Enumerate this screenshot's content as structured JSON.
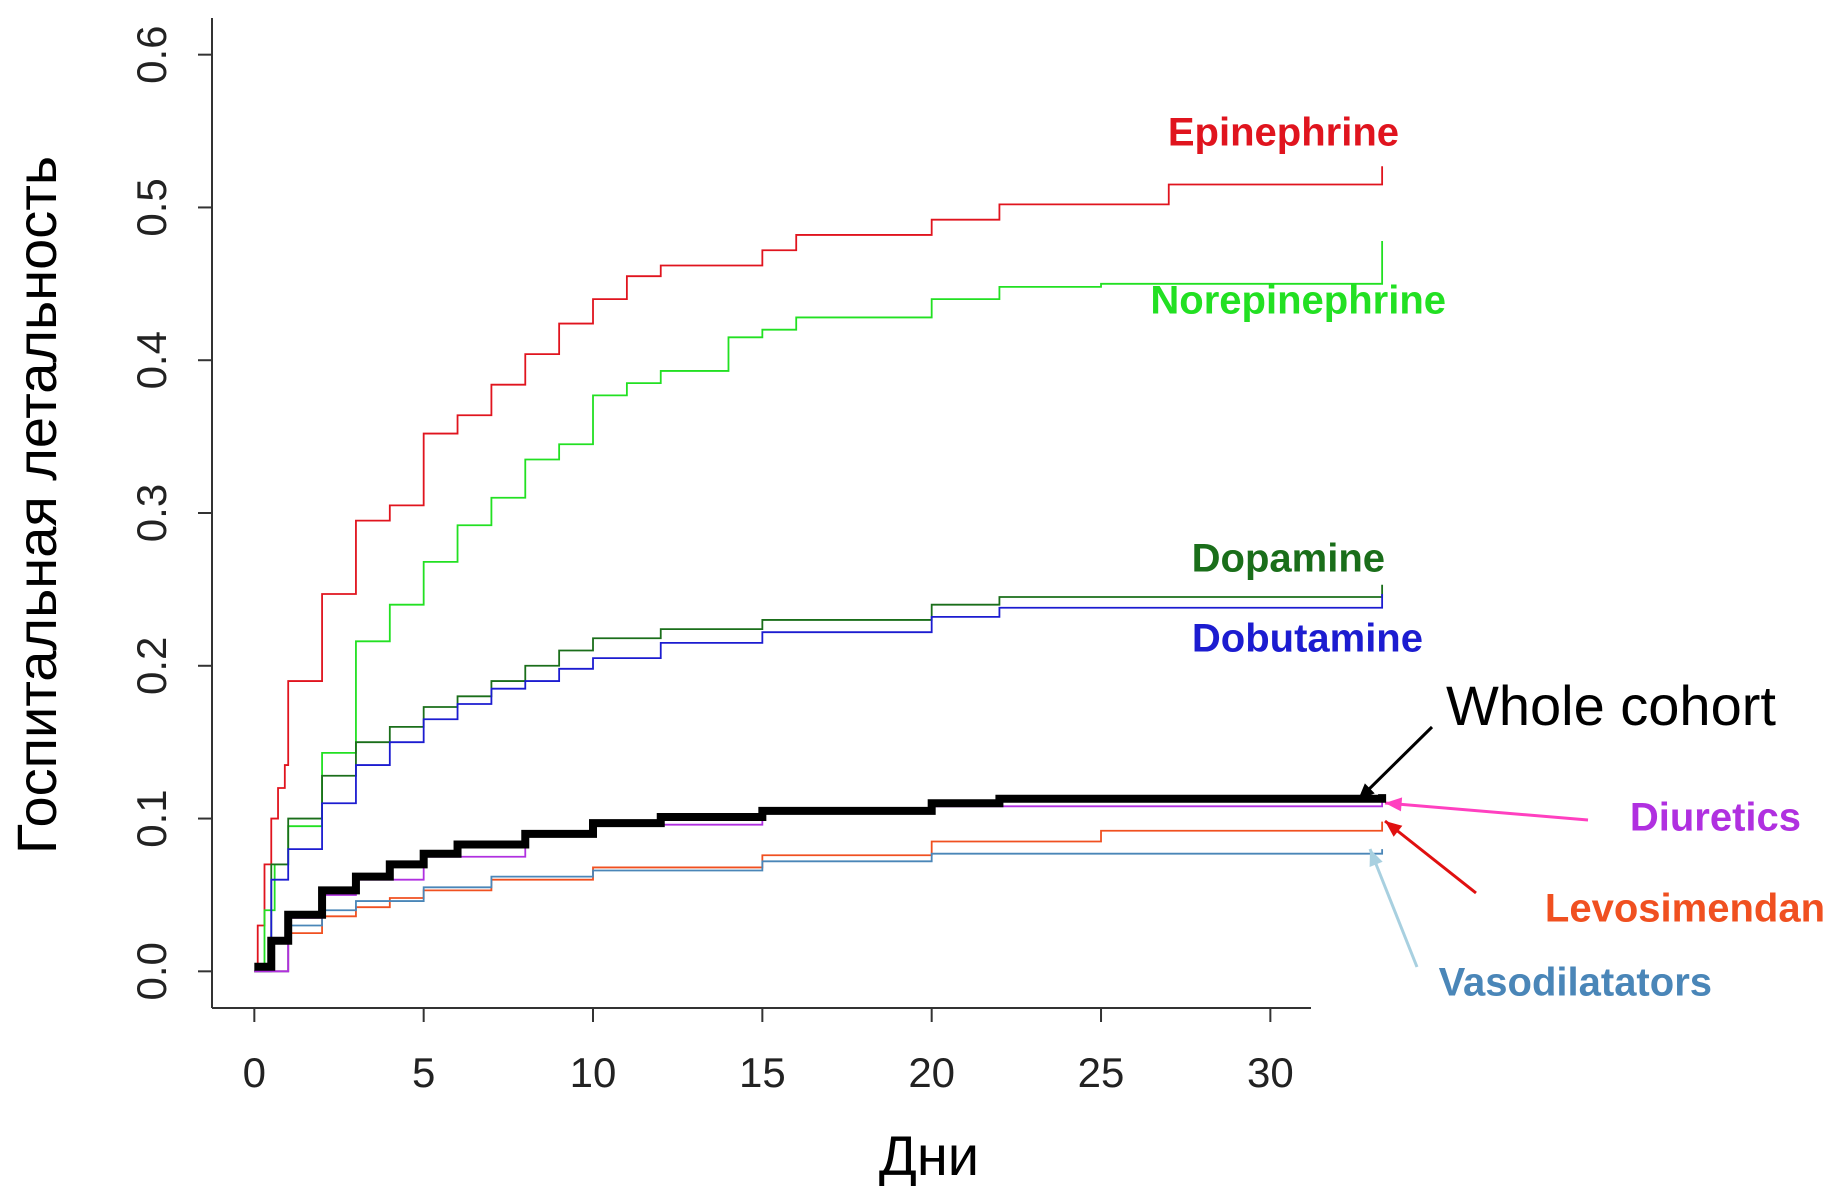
{
  "chart_data": {
    "type": "line",
    "step": true,
    "y_label": "Госпитальная летальность",
    "x_label": "Дни",
    "xlim": [
      -1.25,
      31.2
    ],
    "ylim": [
      -0.024,
      0.624
    ],
    "xticks": [
      0,
      5,
      10,
      15,
      20,
      25,
      30
    ],
    "yticks": [
      {
        "value": 0,
        "label": "0.0"
      },
      0.1,
      0.2,
      0.3,
      0.4,
      0.5,
      0.6
    ],
    "series": [
      {
        "name": "Epinephrine",
        "color": "#e0141e",
        "x": [
          0,
          0.1,
          0.3,
          0.5,
          0.7,
          0.9,
          1,
          2,
          3,
          4,
          5,
          6,
          7,
          8,
          9,
          10,
          11,
          12,
          15,
          16,
          20,
          22,
          27,
          33.3
        ],
        "values": [
          0,
          0.03,
          0.07,
          0.1,
          0.12,
          0.135,
          0.19,
          0.247,
          0.295,
          0.305,
          0.352,
          0.364,
          0.384,
          0.404,
          0.424,
          0.44,
          0.455,
          0.462,
          0.472,
          0.482,
          0.492,
          0.502,
          0.515,
          0.527
        ]
      },
      {
        "name": "Norepinephrine",
        "color": "#22e022",
        "x": [
          0,
          0.3,
          0.6,
          1,
          2,
          3,
          4,
          5,
          6,
          7,
          8,
          9,
          10,
          11,
          12,
          14,
          15,
          16,
          20,
          22,
          25,
          33.3
        ],
        "values": [
          0,
          0.04,
          0.07,
          0.095,
          0.143,
          0.216,
          0.24,
          0.268,
          0.292,
          0.31,
          0.335,
          0.345,
          0.377,
          0.385,
          0.393,
          0.415,
          0.42,
          0.428,
          0.44,
          0.448,
          0.45,
          0.478
        ]
      },
      {
        "name": "Dopamine",
        "color": "#1a6e1a",
        "x": [
          0,
          0.5,
          1,
          2,
          3,
          4,
          5,
          6,
          7,
          8,
          9,
          10,
          12,
          15,
          20,
          22,
          33.3
        ],
        "values": [
          0,
          0.07,
          0.1,
          0.128,
          0.15,
          0.16,
          0.173,
          0.18,
          0.19,
          0.2,
          0.21,
          0.218,
          0.224,
          0.23,
          0.24,
          0.245,
          0.253
        ]
      },
      {
        "name": "Dobutamine",
        "color": "#1c1cd0",
        "x": [
          0,
          0.5,
          1,
          2,
          3,
          4,
          5,
          6,
          7,
          8,
          9,
          10,
          12,
          15,
          20,
          22,
          33.3
        ],
        "values": [
          0,
          0.06,
          0.08,
          0.11,
          0.135,
          0.15,
          0.165,
          0.175,
          0.185,
          0.19,
          0.198,
          0.205,
          0.215,
          0.222,
          0.232,
          0.238,
          0.247
        ]
      },
      {
        "name": "Levosimendan",
        "color": "#f05020",
        "x": [
          0,
          1,
          2,
          3,
          4,
          5,
          7,
          10,
          15,
          20,
          25,
          33.3
        ],
        "values": [
          0,
          0.025,
          0.036,
          0.042,
          0.048,
          0.053,
          0.06,
          0.068,
          0.076,
          0.085,
          0.092,
          0.098
        ]
      },
      {
        "name": "Vasodilatators",
        "color": "#4a86b8",
        "x": [
          0,
          1,
          2,
          3,
          5,
          7,
          10,
          15,
          20,
          33.3
        ],
        "values": [
          0,
          0.03,
          0.04,
          0.046,
          0.055,
          0.062,
          0.066,
          0.072,
          0.077,
          0.08
        ]
      },
      {
        "name": "Diuretics",
        "color": "#b030e0",
        "x": [
          0,
          1,
          2,
          3,
          5,
          8,
          10,
          15,
          20,
          33.3
        ],
        "values": [
          0,
          0.035,
          0.05,
          0.06,
          0.075,
          0.089,
          0.096,
          0.104,
          0.108,
          0.113
        ]
      },
      {
        "name": "Whole cohort",
        "color": "#000000",
        "x": [
          0,
          0.5,
          1,
          2,
          3,
          4,
          5,
          6,
          8,
          10,
          12,
          15,
          20,
          22,
          33.3
        ],
        "values": [
          0.003,
          0.02,
          0.037,
          0.053,
          0.062,
          0.07,
          0.077,
          0.083,
          0.09,
          0.097,
          0.101,
          0.105,
          0.11,
          0.113,
          0.116
        ]
      }
    ]
  }
}
